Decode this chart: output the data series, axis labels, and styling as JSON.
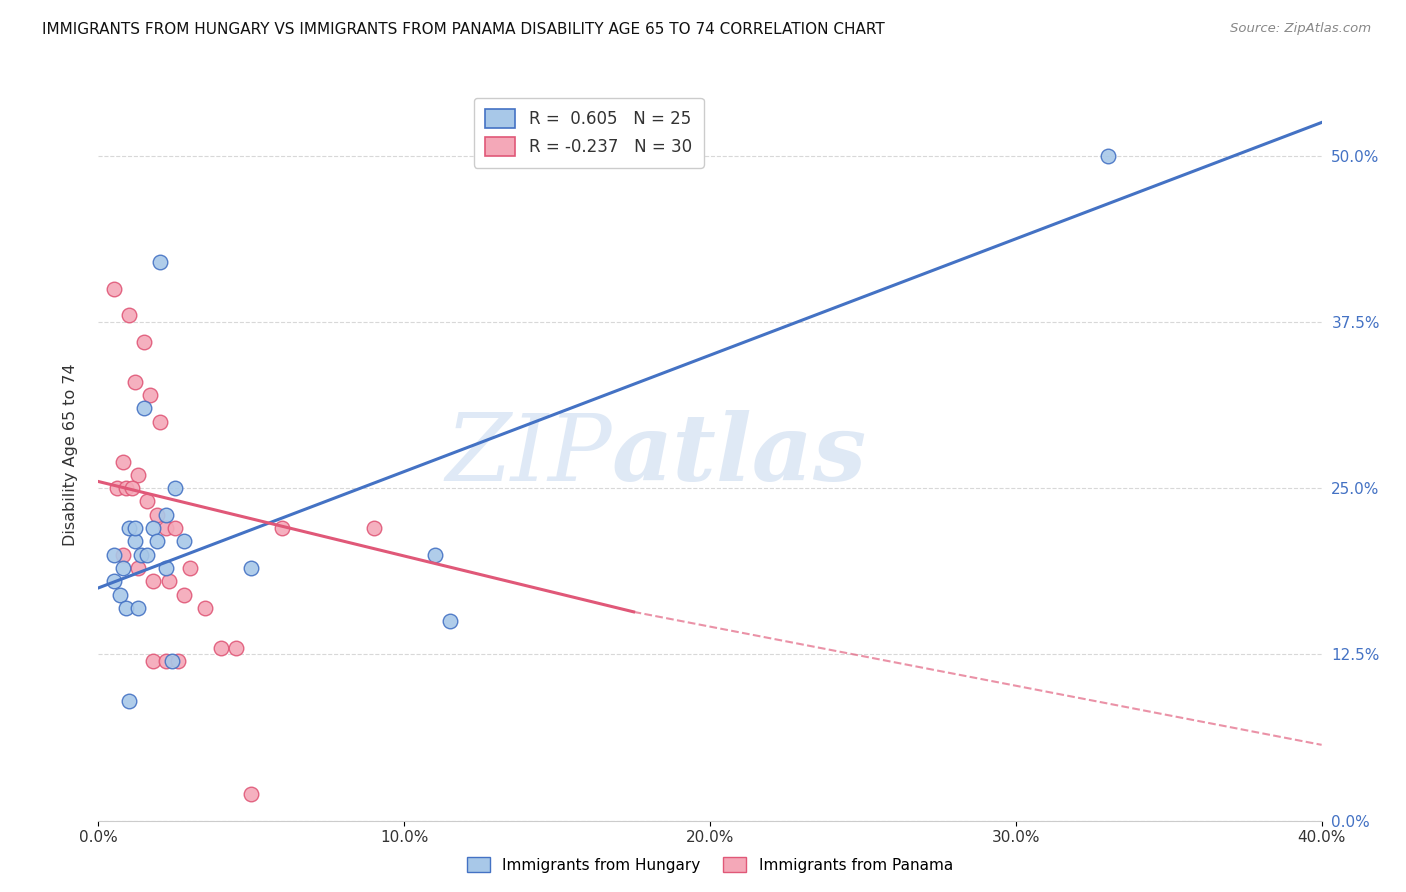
{
  "title": "IMMIGRANTS FROM HUNGARY VS IMMIGRANTS FROM PANAMA DISABILITY AGE 65 TO 74 CORRELATION CHART",
  "source": "Source: ZipAtlas.com",
  "ylabel": "Disability Age 65 to 74",
  "legend_blue_r": "0.605",
  "legend_blue_n": "25",
  "legend_pink_r": "-0.237",
  "legend_pink_n": "30",
  "blue_color": "#a8c8e8",
  "pink_color": "#f4a8b8",
  "blue_line_color": "#4472C4",
  "pink_line_color": "#E05878",
  "blue_scatter": [
    [
      0.01,
      0.22
    ],
    [
      0.02,
      0.42
    ],
    [
      0.015,
      0.31
    ],
    [
      0.005,
      0.2
    ],
    [
      0.008,
      0.19
    ],
    [
      0.012,
      0.21
    ],
    [
      0.018,
      0.22
    ],
    [
      0.022,
      0.23
    ],
    [
      0.025,
      0.25
    ],
    [
      0.028,
      0.21
    ],
    [
      0.005,
      0.18
    ],
    [
      0.007,
      0.17
    ],
    [
      0.009,
      0.16
    ],
    [
      0.012,
      0.22
    ],
    [
      0.014,
      0.2
    ],
    [
      0.016,
      0.2
    ],
    [
      0.019,
      0.21
    ],
    [
      0.022,
      0.19
    ],
    [
      0.024,
      0.12
    ],
    [
      0.013,
      0.16
    ],
    [
      0.01,
      0.09
    ],
    [
      0.05,
      0.19
    ],
    [
      0.11,
      0.2
    ],
    [
      0.115,
      0.15
    ],
    [
      0.33,
      0.5
    ]
  ],
  "pink_scatter": [
    [
      0.005,
      0.4
    ],
    [
      0.01,
      0.38
    ],
    [
      0.015,
      0.36
    ],
    [
      0.012,
      0.33
    ],
    [
      0.017,
      0.32
    ],
    [
      0.02,
      0.3
    ],
    [
      0.008,
      0.27
    ],
    [
      0.013,
      0.26
    ],
    [
      0.006,
      0.25
    ],
    [
      0.009,
      0.25
    ],
    [
      0.011,
      0.25
    ],
    [
      0.016,
      0.24
    ],
    [
      0.019,
      0.23
    ],
    [
      0.022,
      0.22
    ],
    [
      0.025,
      0.22
    ],
    [
      0.008,
      0.2
    ],
    [
      0.013,
      0.19
    ],
    [
      0.018,
      0.18
    ],
    [
      0.023,
      0.18
    ],
    [
      0.028,
      0.17
    ],
    [
      0.06,
      0.22
    ],
    [
      0.09,
      0.22
    ],
    [
      0.03,
      0.19
    ],
    [
      0.035,
      0.16
    ],
    [
      0.04,
      0.13
    ],
    [
      0.045,
      0.13
    ],
    [
      0.018,
      0.12
    ],
    [
      0.022,
      0.12
    ],
    [
      0.026,
      0.12
    ],
    [
      0.05,
      0.02
    ]
  ],
  "xlim": [
    0.0,
    0.4
  ],
  "ylim": [
    0.0,
    0.55
  ],
  "xticks": [
    0.0,
    0.1,
    0.2,
    0.3,
    0.4
  ],
  "yticks": [
    0.0,
    0.125,
    0.25,
    0.375,
    0.5
  ],
  "blue_line": [
    [
      0.0,
      0.175
    ],
    [
      0.4,
      0.525
    ]
  ],
  "pink_line_solid": [
    [
      0.0,
      0.255
    ],
    [
      0.175,
      0.157
    ]
  ],
  "pink_line_dash": [
    [
      0.175,
      0.157
    ],
    [
      0.4,
      0.057
    ]
  ],
  "watermark_zip": "ZIP",
  "watermark_atlas": "atlas",
  "background_color": "#ffffff",
  "grid_color": "#d8d8d8",
  "bottom_legend": [
    "Immigrants from Hungary",
    "Immigrants from Panama"
  ]
}
